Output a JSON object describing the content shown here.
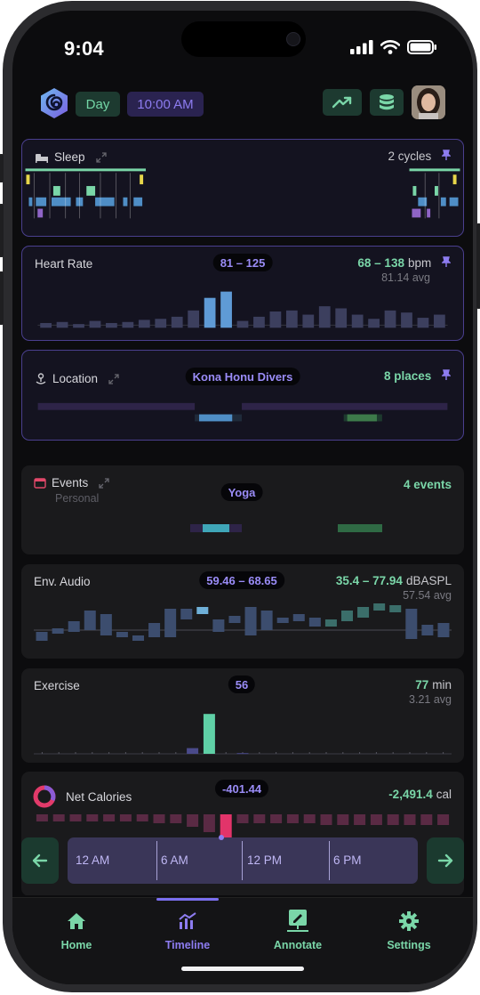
{
  "status_bar": {
    "time": "9:04"
  },
  "header": {
    "period_label": "Day",
    "time_label": "10:00 AM",
    "trend_icon": "trend-up-icon",
    "database_icon": "database-icon"
  },
  "cards": {
    "sleep": {
      "title": "Sleep",
      "right_value": "2 cycles"
    },
    "heart_rate": {
      "title": "Heart Rate",
      "badge": "81 – 125",
      "right_value": "68 – 138",
      "unit": "bpm",
      "sub": "81.14 avg",
      "bars": [
        2,
        3,
        1,
        4,
        2,
        3,
        5,
        6,
        8,
        14,
        26,
        32,
        4,
        8,
        13,
        14,
        10,
        18,
        16,
        10,
        6,
        14,
        12,
        7,
        10
      ]
    },
    "location": {
      "title": "Location",
      "badge": "Kona Honu Divers",
      "right_value": "8 places"
    },
    "events": {
      "title": "Events",
      "sub": "Personal",
      "badge": "Yoga",
      "right_value": "4 events"
    },
    "env_audio": {
      "title": "Env. Audio",
      "badge": "59.46 – 68.65",
      "right_value": "35.4 – 77.94",
      "unit": "dBASPL",
      "sub": "57.54 avg"
    },
    "exercise": {
      "title": "Exercise",
      "badge": "56",
      "right_value": "77",
      "unit": "min",
      "sub": "3.21 avg",
      "bars": [
        0,
        0,
        0,
        0,
        0,
        0,
        0,
        0,
        0,
        8,
        56,
        0,
        1,
        0,
        0,
        0,
        0,
        0,
        0,
        0,
        0,
        0,
        0,
        0,
        0
      ]
    },
    "net_calories": {
      "title": "Net Calories",
      "badge": "-401.44",
      "right_value": "-2,491.4",
      "unit": "cal"
    }
  },
  "timeline": {
    "ticks": [
      "12 AM",
      "6 AM",
      "12 PM",
      "6 PM"
    ]
  },
  "nav": {
    "items": [
      {
        "label": "Home",
        "icon": "home-icon"
      },
      {
        "label": "Timeline",
        "icon": "chart-icon"
      },
      {
        "label": "Annotate",
        "icon": "annotate-icon"
      },
      {
        "label": "Settings",
        "icon": "gear-icon"
      }
    ]
  }
}
